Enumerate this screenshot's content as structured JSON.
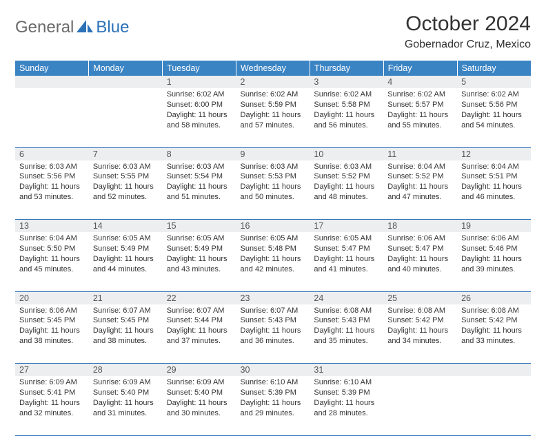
{
  "logo": {
    "general": "General",
    "blue": "Blue"
  },
  "title": "October 2024",
  "location": "Gobernador Cruz, Mexico",
  "colors": {
    "header_bg": "#3b84c4",
    "header_text": "#ffffff",
    "border": "#2a71b8",
    "daynum_bg": "#eceeef",
    "text": "#333333",
    "logo_gray": "#6a6a6a",
    "logo_blue": "#2a71b8"
  },
  "weekdays": [
    "Sunday",
    "Monday",
    "Tuesday",
    "Wednesday",
    "Thursday",
    "Friday",
    "Saturday"
  ],
  "weeks": [
    [
      null,
      null,
      {
        "n": "1",
        "sr": "Sunrise: 6:02 AM",
        "ss": "Sunset: 6:00 PM",
        "dl": "Daylight: 11 hours and 58 minutes."
      },
      {
        "n": "2",
        "sr": "Sunrise: 6:02 AM",
        "ss": "Sunset: 5:59 PM",
        "dl": "Daylight: 11 hours and 57 minutes."
      },
      {
        "n": "3",
        "sr": "Sunrise: 6:02 AM",
        "ss": "Sunset: 5:58 PM",
        "dl": "Daylight: 11 hours and 56 minutes."
      },
      {
        "n": "4",
        "sr": "Sunrise: 6:02 AM",
        "ss": "Sunset: 5:57 PM",
        "dl": "Daylight: 11 hours and 55 minutes."
      },
      {
        "n": "5",
        "sr": "Sunrise: 6:02 AM",
        "ss": "Sunset: 5:56 PM",
        "dl": "Daylight: 11 hours and 54 minutes."
      }
    ],
    [
      {
        "n": "6",
        "sr": "Sunrise: 6:03 AM",
        "ss": "Sunset: 5:56 PM",
        "dl": "Daylight: 11 hours and 53 minutes."
      },
      {
        "n": "7",
        "sr": "Sunrise: 6:03 AM",
        "ss": "Sunset: 5:55 PM",
        "dl": "Daylight: 11 hours and 52 minutes."
      },
      {
        "n": "8",
        "sr": "Sunrise: 6:03 AM",
        "ss": "Sunset: 5:54 PM",
        "dl": "Daylight: 11 hours and 51 minutes."
      },
      {
        "n": "9",
        "sr": "Sunrise: 6:03 AM",
        "ss": "Sunset: 5:53 PM",
        "dl": "Daylight: 11 hours and 50 minutes."
      },
      {
        "n": "10",
        "sr": "Sunrise: 6:03 AM",
        "ss": "Sunset: 5:52 PM",
        "dl": "Daylight: 11 hours and 48 minutes."
      },
      {
        "n": "11",
        "sr": "Sunrise: 6:04 AM",
        "ss": "Sunset: 5:52 PM",
        "dl": "Daylight: 11 hours and 47 minutes."
      },
      {
        "n": "12",
        "sr": "Sunrise: 6:04 AM",
        "ss": "Sunset: 5:51 PM",
        "dl": "Daylight: 11 hours and 46 minutes."
      }
    ],
    [
      {
        "n": "13",
        "sr": "Sunrise: 6:04 AM",
        "ss": "Sunset: 5:50 PM",
        "dl": "Daylight: 11 hours and 45 minutes."
      },
      {
        "n": "14",
        "sr": "Sunrise: 6:05 AM",
        "ss": "Sunset: 5:49 PM",
        "dl": "Daylight: 11 hours and 44 minutes."
      },
      {
        "n": "15",
        "sr": "Sunrise: 6:05 AM",
        "ss": "Sunset: 5:49 PM",
        "dl": "Daylight: 11 hours and 43 minutes."
      },
      {
        "n": "16",
        "sr": "Sunrise: 6:05 AM",
        "ss": "Sunset: 5:48 PM",
        "dl": "Daylight: 11 hours and 42 minutes."
      },
      {
        "n": "17",
        "sr": "Sunrise: 6:05 AM",
        "ss": "Sunset: 5:47 PM",
        "dl": "Daylight: 11 hours and 41 minutes."
      },
      {
        "n": "18",
        "sr": "Sunrise: 6:06 AM",
        "ss": "Sunset: 5:47 PM",
        "dl": "Daylight: 11 hours and 40 minutes."
      },
      {
        "n": "19",
        "sr": "Sunrise: 6:06 AM",
        "ss": "Sunset: 5:46 PM",
        "dl": "Daylight: 11 hours and 39 minutes."
      }
    ],
    [
      {
        "n": "20",
        "sr": "Sunrise: 6:06 AM",
        "ss": "Sunset: 5:45 PM",
        "dl": "Daylight: 11 hours and 38 minutes."
      },
      {
        "n": "21",
        "sr": "Sunrise: 6:07 AM",
        "ss": "Sunset: 5:45 PM",
        "dl": "Daylight: 11 hours and 38 minutes."
      },
      {
        "n": "22",
        "sr": "Sunrise: 6:07 AM",
        "ss": "Sunset: 5:44 PM",
        "dl": "Daylight: 11 hours and 37 minutes."
      },
      {
        "n": "23",
        "sr": "Sunrise: 6:07 AM",
        "ss": "Sunset: 5:43 PM",
        "dl": "Daylight: 11 hours and 36 minutes."
      },
      {
        "n": "24",
        "sr": "Sunrise: 6:08 AM",
        "ss": "Sunset: 5:43 PM",
        "dl": "Daylight: 11 hours and 35 minutes."
      },
      {
        "n": "25",
        "sr": "Sunrise: 6:08 AM",
        "ss": "Sunset: 5:42 PM",
        "dl": "Daylight: 11 hours and 34 minutes."
      },
      {
        "n": "26",
        "sr": "Sunrise: 6:08 AM",
        "ss": "Sunset: 5:42 PM",
        "dl": "Daylight: 11 hours and 33 minutes."
      }
    ],
    [
      {
        "n": "27",
        "sr": "Sunrise: 6:09 AM",
        "ss": "Sunset: 5:41 PM",
        "dl": "Daylight: 11 hours and 32 minutes."
      },
      {
        "n": "28",
        "sr": "Sunrise: 6:09 AM",
        "ss": "Sunset: 5:40 PM",
        "dl": "Daylight: 11 hours and 31 minutes."
      },
      {
        "n": "29",
        "sr": "Sunrise: 6:09 AM",
        "ss": "Sunset: 5:40 PM",
        "dl": "Daylight: 11 hours and 30 minutes."
      },
      {
        "n": "30",
        "sr": "Sunrise: 6:10 AM",
        "ss": "Sunset: 5:39 PM",
        "dl": "Daylight: 11 hours and 29 minutes."
      },
      {
        "n": "31",
        "sr": "Sunrise: 6:10 AM",
        "ss": "Sunset: 5:39 PM",
        "dl": "Daylight: 11 hours and 28 minutes."
      },
      null,
      null
    ]
  ]
}
